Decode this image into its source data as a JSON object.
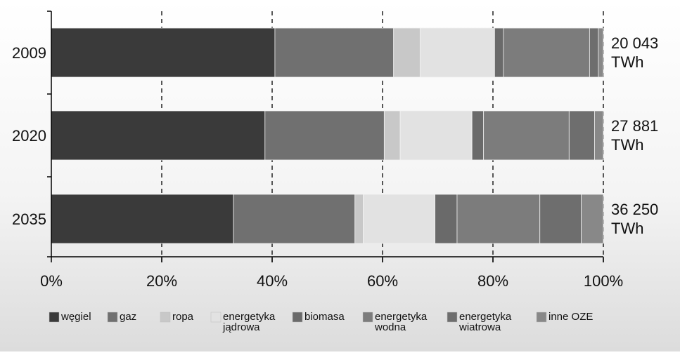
{
  "chart_data": {
    "type": "bar",
    "orientation": "horizontal",
    "stacked": true,
    "normalized": true,
    "categories": [
      "2009",
      "2020",
      "2035"
    ],
    "totals": [
      "20 043",
      "27 881",
      "36 250"
    ],
    "totals_unit": "TWh",
    "series": [
      {
        "name": "węgiel",
        "values": [
          40.5,
          38.7,
          33.0
        ],
        "color": "#3a3a3a"
      },
      {
        "name": "gaz",
        "values": [
          21.5,
          21.6,
          22.0
        ],
        "color": "#707070"
      },
      {
        "name": "ropa",
        "values": [
          4.8,
          2.9,
          1.5
        ],
        "color": "#c8c8c8"
      },
      {
        "name": "energetyka jądrowa",
        "values": [
          13.5,
          13.0,
          13.0
        ],
        "color": "#e2e2e2"
      },
      {
        "name": "biomasa",
        "values": [
          1.6,
          2.1,
          4.0
        ],
        "color": "#6a6a6a"
      },
      {
        "name": "energetyka wodna",
        "values": [
          15.6,
          15.5,
          15.0
        ],
        "color": "#7c7c7c"
      },
      {
        "name": "energetyka wiatrowa",
        "values": [
          1.6,
          4.6,
          7.5
        ],
        "color": "#6e6e6e"
      },
      {
        "name": "inne OZE",
        "values": [
          0.9,
          1.6,
          4.0
        ],
        "color": "#888888"
      }
    ],
    "xlim": [
      0,
      100
    ],
    "xticks": [
      "0%",
      "20%",
      "40%",
      "60%",
      "80%",
      "100%"
    ],
    "xlabel": "",
    "ylabel": "",
    "title": "",
    "grid": "vertical dashed",
    "legend_position": "bottom"
  }
}
